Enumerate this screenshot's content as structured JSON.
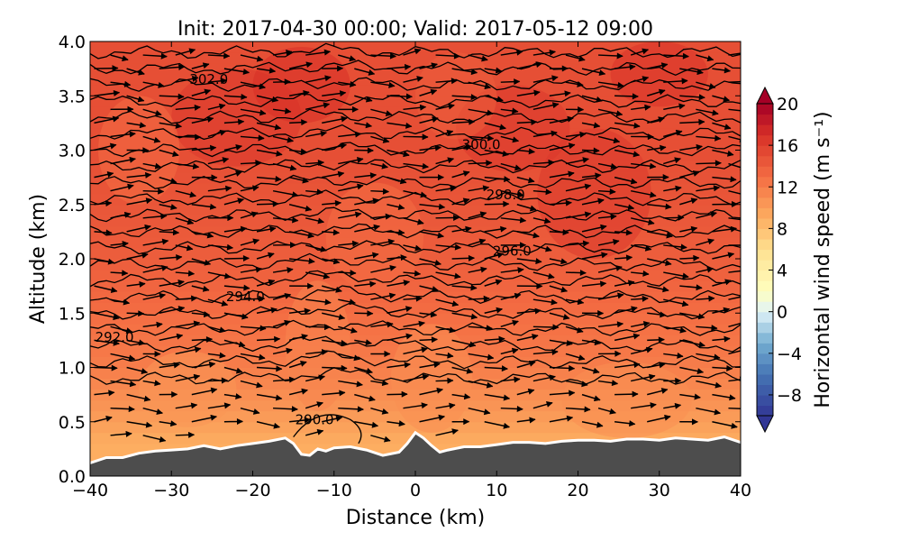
{
  "chart_data": {
    "type": "contour",
    "title": "Init: 2017-04-30 00:00; Valid: 2017-05-12 09:00",
    "xlabel": "Distance (km)",
    "ylabel": "Altitude (km)",
    "xlim": [
      -40,
      40
    ],
    "ylim": [
      0.0,
      4.0
    ],
    "x_ticks": [
      "−40",
      "−30",
      "−20",
      "−10",
      "0",
      "10",
      "20",
      "30",
      "40"
    ],
    "x_tick_values": [
      -40,
      -30,
      -20,
      -10,
      0,
      10,
      20,
      30,
      40
    ],
    "y_ticks": [
      "0.0",
      "0.5",
      "1.0",
      "1.5",
      "2.0",
      "2.5",
      "3.0",
      "3.5",
      "4.0"
    ],
    "y_tick_values": [
      0.0,
      0.5,
      1.0,
      1.5,
      2.0,
      2.5,
      3.0,
      3.5,
      4.0
    ],
    "filled_field": {
      "name": "Horizontal wind speed",
      "colorbar": {
        "label": "Horizontal wind speed (m s⁻¹)",
        "range": [
          -10,
          20
        ],
        "tick_labels": [
          "−8",
          "−4",
          "0",
          "4",
          "8",
          "12",
          "16",
          "20"
        ],
        "tick_values": [
          -8,
          -4,
          0,
          4,
          8,
          12,
          16,
          20
        ],
        "extend": "both",
        "colormap": "RdYlBu_r",
        "stops": [
          {
            "v": -10,
            "color": "#313695"
          },
          {
            "v": -6,
            "color": "#4575b4"
          },
          {
            "v": -3,
            "color": "#74add1"
          },
          {
            "v": 0,
            "color": "#e0f3f8"
          },
          {
            "v": 2,
            "color": "#ffffbf"
          },
          {
            "v": 6,
            "color": "#fee090"
          },
          {
            "v": 9,
            "color": "#fdae61"
          },
          {
            "v": 13,
            "color": "#f46d43"
          },
          {
            "v": 17,
            "color": "#d73027"
          },
          {
            "v": 20,
            "color": "#a50026"
          }
        ]
      },
      "approx_profile": [
        {
          "altitude_km": 0.3,
          "speed": 9
        },
        {
          "altitude_km": 0.5,
          "speed": 10
        },
        {
          "altitude_km": 1.0,
          "speed": 12
        },
        {
          "altitude_km": 1.5,
          "speed": 13
        },
        {
          "altitude_km": 2.0,
          "speed": 14
        },
        {
          "altitude_km": 3.0,
          "speed": 15
        },
        {
          "altitude_km": 4.0,
          "speed": 15
        }
      ]
    },
    "contour_lines": {
      "name": "Potential temperature",
      "labels": [
        {
          "text": "290.0",
          "value": 290.0,
          "x_km": -12.4,
          "alt_km": 0.52
        },
        {
          "text": "292.0",
          "value": 292.0,
          "x_km": -37.0,
          "alt_km": 1.28
        },
        {
          "text": "294.0",
          "value": 294.0,
          "x_km": -20.9,
          "alt_km": 1.65
        },
        {
          "text": "296.0",
          "value": 296.0,
          "x_km": 11.9,
          "alt_km": 2.07
        },
        {
          "text": "298.0",
          "value": 298.0,
          "x_km": 11.1,
          "alt_km": 2.59
        },
        {
          "text": "300.0",
          "value": 300.0,
          "x_km": 8.1,
          "alt_km": 3.05
        },
        {
          "text": "302.0",
          "value": 302.0,
          "x_km": -25.4,
          "alt_km": 3.65
        }
      ],
      "level_altitudes_km": [
        0.9,
        1.05,
        1.2,
        1.35,
        1.5,
        1.65,
        1.8,
        1.95,
        2.1,
        2.25,
        2.4,
        2.55,
        2.7,
        2.85,
        3.0,
        3.15,
        3.3,
        3.45,
        3.6,
        3.75,
        3.9
      ]
    },
    "terrain": {
      "name": "Orography",
      "color": "#4d4d4d",
      "points": [
        [
          -40,
          0.12
        ],
        [
          -38,
          0.17
        ],
        [
          -36,
          0.17
        ],
        [
          -34,
          0.21
        ],
        [
          -32,
          0.23
        ],
        [
          -30,
          0.24
        ],
        [
          -28,
          0.25
        ],
        [
          -26,
          0.28
        ],
        [
          -24,
          0.25
        ],
        [
          -22,
          0.28
        ],
        [
          -20,
          0.3
        ],
        [
          -18,
          0.32
        ],
        [
          -16,
          0.35
        ],
        [
          -15,
          0.3
        ],
        [
          -14,
          0.2
        ],
        [
          -13,
          0.19
        ],
        [
          -12,
          0.25
        ],
        [
          -11,
          0.23
        ],
        [
          -10,
          0.26
        ],
        [
          -8,
          0.27
        ],
        [
          -6,
          0.24
        ],
        [
          -4,
          0.19
        ],
        [
          -2,
          0.22
        ],
        [
          -1,
          0.3
        ],
        [
          0,
          0.4
        ],
        [
          1,
          0.35
        ],
        [
          2,
          0.28
        ],
        [
          3,
          0.22
        ],
        [
          4,
          0.24
        ],
        [
          6,
          0.27
        ],
        [
          8,
          0.27
        ],
        [
          10,
          0.29
        ],
        [
          12,
          0.31
        ],
        [
          14,
          0.31
        ],
        [
          16,
          0.3
        ],
        [
          18,
          0.32
        ],
        [
          20,
          0.33
        ],
        [
          22,
          0.33
        ],
        [
          24,
          0.32
        ],
        [
          26,
          0.34
        ],
        [
          28,
          0.34
        ],
        [
          30,
          0.33
        ],
        [
          32,
          0.35
        ],
        [
          34,
          0.34
        ],
        [
          36,
          0.33
        ],
        [
          38,
          0.36
        ],
        [
          40,
          0.31
        ]
      ]
    },
    "wind_vectors": {
      "name": "Wind",
      "direction": "mostly eastward (left to right) with small vertical tilt",
      "x_spacing_km": 4,
      "alt_spacing_km": 0.125
    },
    "grid": false
  }
}
